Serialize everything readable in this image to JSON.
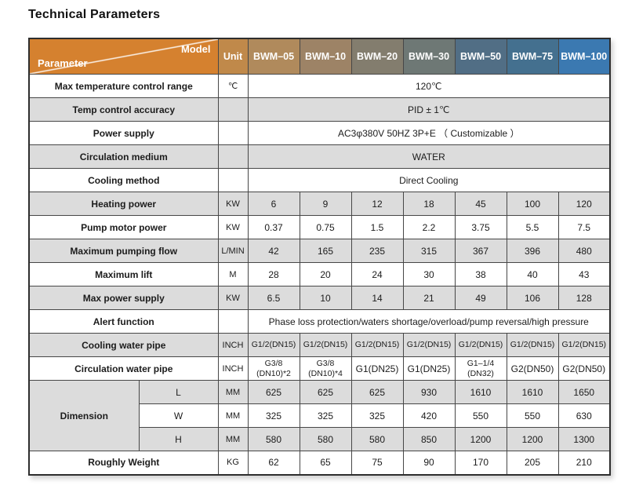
{
  "page": {
    "title": "Technical Parameters"
  },
  "colors": {
    "corner_bg": "#d5812f",
    "unit_header_bg": "#c0894a",
    "header_text": "#ffffff",
    "row_shade_bg": "#dcdcdc",
    "border": "#474747",
    "body_text": "#1c1c1c"
  },
  "table": {
    "corner": {
      "model_label": "Model",
      "parameter_label": "Parameter"
    },
    "unit_label": "Unit",
    "columns": [
      {
        "label": "BWM–05",
        "bg": "#b08a5c"
      },
      {
        "label": "BWM–10",
        "bg": "#9d8366"
      },
      {
        "label": "BWM–20",
        "bg": "#837d6e"
      },
      {
        "label": "BWM–30",
        "bg": "#6e7875"
      },
      {
        "label": "BWM–50",
        "bg": "#516e85"
      },
      {
        "label": "BWM–75",
        "bg": "#44708f"
      },
      {
        "label": "BWM–100",
        "bg": "#3b79b1"
      }
    ],
    "rows": [
      {
        "type": "span",
        "param": "Max temperature control range",
        "unit": "℃",
        "value": "120℃"
      },
      {
        "type": "span",
        "param": "Temp control accuracy",
        "unit": "",
        "value": "PID ± 1℃"
      },
      {
        "type": "span",
        "param": "Power supply",
        "unit": "",
        "value": "AC3φ380V 50HZ 3P+E （ Customizable ）"
      },
      {
        "type": "span",
        "param": "Circulation medium",
        "unit": "",
        "value": "WATER"
      },
      {
        "type": "span",
        "param": "Cooling method",
        "unit": "",
        "value": "Direct Cooling"
      },
      {
        "type": "values",
        "param": "Heating power",
        "unit": "KW",
        "values": [
          "6",
          "9",
          "12",
          "18",
          "45",
          "100",
          "120"
        ]
      },
      {
        "type": "values",
        "param": "Pump motor power",
        "unit": "KW",
        "values": [
          "0.37",
          "0.75",
          "1.5",
          "2.2",
          "3.75",
          "5.5",
          "7.5"
        ]
      },
      {
        "type": "values",
        "param": "Maximum pumping flow",
        "unit": "L/MIN",
        "values": [
          "42",
          "165",
          "235",
          "315",
          "367",
          "396",
          "480"
        ]
      },
      {
        "type": "values",
        "param": "Maximum lift",
        "unit": "M",
        "values": [
          "28",
          "20",
          "24",
          "30",
          "38",
          "40",
          "43"
        ]
      },
      {
        "type": "values",
        "param": "Max power supply",
        "unit": "KW",
        "values": [
          "6.5",
          "10",
          "14",
          "21",
          "49",
          "106",
          "128"
        ]
      },
      {
        "type": "span",
        "param": "Alert function",
        "unit": "",
        "value": "Phase loss protection/waters shortage/overload/pump reversal/high pressure"
      },
      {
        "type": "values",
        "param": "Cooling water pipe",
        "unit": "INCH",
        "values": [
          "G1/2(DN15)",
          "G1/2(DN15)",
          "G1/2(DN15)",
          "G1/2(DN15)",
          "G1/2(DN15)",
          "G1/2(DN15)",
          "G1/2(DN15)"
        ]
      },
      {
        "type": "values",
        "param": "Circulation water pipe",
        "unit": "INCH",
        "values": [
          "G3/8 (DN10)*2",
          "G3/8 (DN10)*4",
          "G1(DN25)",
          "G1(DN25)",
          "G1–1/4 (DN32)",
          "G2(DN50)",
          "G2(DN50)"
        ]
      },
      {
        "type": "group",
        "param": "Dimension",
        "subrows": [
          {
            "label": "L",
            "unit": "MM",
            "values": [
              "625",
              "625",
              "625",
              "930",
              "1610",
              "1610",
              "1650"
            ]
          },
          {
            "label": "W",
            "unit": "MM",
            "values": [
              "325",
              "325",
              "325",
              "420",
              "550",
              "550",
              "630"
            ]
          },
          {
            "label": "H",
            "unit": "MM",
            "values": [
              "580",
              "580",
              "580",
              "850",
              "1200",
              "1200",
              "1300"
            ]
          }
        ]
      },
      {
        "type": "values",
        "param": "Roughly Weight",
        "unit": "KG",
        "values": [
          "62",
          "65",
          "75",
          "90",
          "170",
          "205",
          "210"
        ]
      }
    ]
  }
}
